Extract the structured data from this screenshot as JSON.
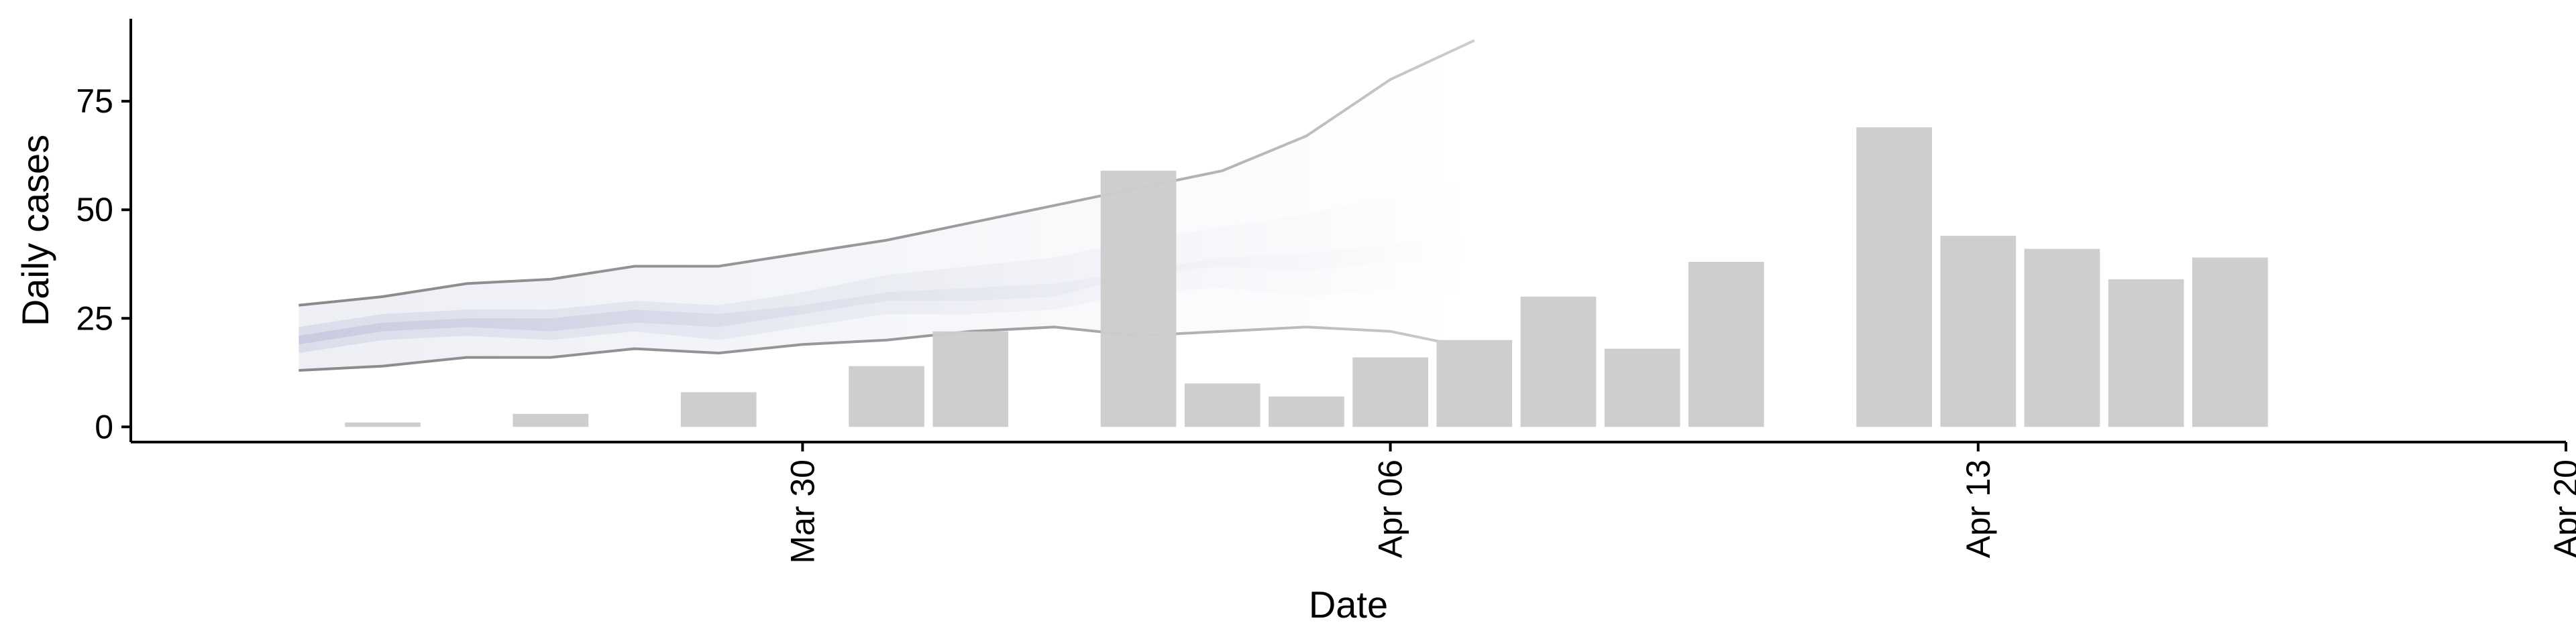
{
  "chart_data": {
    "type": "bar",
    "title": "",
    "xlabel": "Date",
    "ylabel": "Daily cases",
    "xlim": [
      "2020-03-22",
      "2020-04-20"
    ],
    "ylim": [
      -3.5,
      94
    ],
    "x_ticks": [
      {
        "date": "2020-03-30",
        "label": "Mar 30"
      },
      {
        "date": "2020-04-06",
        "label": "Apr 06"
      },
      {
        "date": "2020-04-13",
        "label": "Apr 13"
      },
      {
        "date": "2020-04-20",
        "label": "Apr 20"
      }
    ],
    "y_ticks": [
      0,
      25,
      50,
      75
    ],
    "grid": false,
    "legend": "none",
    "bars": [
      {
        "date": "2020-03-25",
        "value": 1
      },
      {
        "date": "2020-03-27",
        "value": 3
      },
      {
        "date": "2020-03-29",
        "value": 8
      },
      {
        "date": "2020-03-31",
        "value": 14
      },
      {
        "date": "2020-04-01",
        "value": 22
      },
      {
        "date": "2020-04-03",
        "value": 59
      },
      {
        "date": "2020-04-04",
        "value": 10
      },
      {
        "date": "2020-04-05",
        "value": 7
      },
      {
        "date": "2020-04-06",
        "value": 16
      },
      {
        "date": "2020-04-07",
        "value": 20
      },
      {
        "date": "2020-04-08",
        "value": 30
      },
      {
        "date": "2020-04-09",
        "value": 18
      },
      {
        "date": "2020-04-10",
        "value": 38
      },
      {
        "date": "2020-04-12",
        "value": 69
      },
      {
        "date": "2020-04-13",
        "value": 44
      },
      {
        "date": "2020-04-14",
        "value": 41
      },
      {
        "date": "2020-04-15",
        "value": 34
      },
      {
        "date": "2020-04-16",
        "value": 39
      }
    ],
    "bands": {
      "dates": [
        "2020-03-24",
        "2020-03-25",
        "2020-03-26",
        "2020-03-27",
        "2020-03-28",
        "2020-03-29",
        "2020-03-30",
        "2020-03-31",
        "2020-04-01",
        "2020-04-02",
        "2020-04-03",
        "2020-04-04",
        "2020-04-05",
        "2020-04-06",
        "2020-04-07"
      ],
      "outer_lower": [
        13,
        14,
        16,
        16,
        18,
        17,
        19,
        20,
        22,
        23,
        21,
        22,
        23,
        22,
        18
      ],
      "outer_upper": [
        28,
        30,
        33,
        34,
        37,
        37,
        40,
        43,
        47,
        51,
        55,
        59,
        67,
        80,
        89
      ],
      "middle_lower": [
        17,
        20,
        21,
        20,
        22,
        20,
        23,
        26,
        26,
        27,
        31,
        32,
        30,
        32,
        31
      ],
      "middle_upper": [
        23,
        26,
        27,
        27,
        29,
        28,
        31,
        35,
        37,
        39,
        43,
        46,
        49,
        53,
        57
      ],
      "inner_lower": [
        19,
        22,
        23,
        22,
        24,
        23,
        26,
        29,
        29,
        30,
        35,
        37,
        36,
        38,
        38
      ],
      "inner_upper": [
        21,
        24,
        25,
        25,
        27,
        26,
        28,
        31,
        32,
        33,
        36,
        39,
        40,
        42,
        44
      ]
    },
    "colors": {
      "bar": "#cccccc",
      "band_inner": "#c9cce0",
      "band_middle": "#dadeea",
      "band_outer": "#edeff5",
      "outline_dark": "#8a8a8a",
      "outline_light": "#cdcdcd",
      "axis": "#000000"
    }
  }
}
